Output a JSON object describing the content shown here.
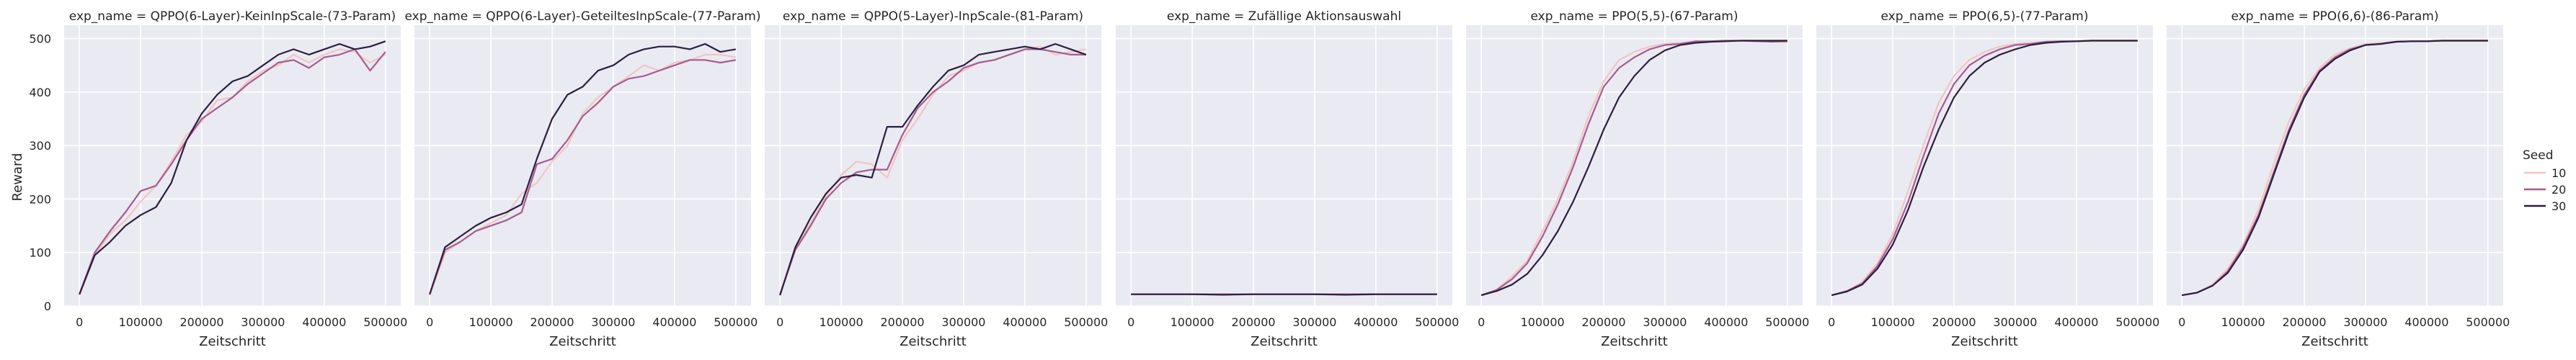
{
  "chart_data": {
    "type": "line",
    "ylabel": "Reward",
    "xlabel": "Zeitschritt",
    "xlim": [
      -25000,
      525000
    ],
    "ylim": [
      0,
      525
    ],
    "xticks": [
      0,
      100000,
      200000,
      300000,
      400000,
      500000
    ],
    "yticks": [
      0,
      100,
      200,
      300,
      400,
      500
    ],
    "grid": true,
    "legend": {
      "title": "Seed",
      "placement": "right",
      "entries": [
        {
          "label": "10",
          "color": "#f0c6c2"
        },
        {
          "label": "20",
          "color": "#a55c8e"
        },
        {
          "label": "30",
          "color": "#2d1e3e"
        }
      ]
    },
    "panels": [
      {
        "title": "exp_name = QPPO(6-Layer)-KeinInpScale-(73-Param)",
        "x": [
          0,
          25000,
          50000,
          75000,
          100000,
          125000,
          150000,
          175000,
          200000,
          225000,
          250000,
          275000,
          300000,
          325000,
          350000,
          375000,
          400000,
          425000,
          450000,
          475000,
          500000
        ],
        "series": [
          {
            "name": "10",
            "values": [
              20,
              95,
              135,
              160,
              195,
              225,
              270,
              320,
              345,
              385,
              390,
              420,
              440,
              450,
              470,
              455,
              470,
              480,
              475,
              455,
              470
            ]
          },
          {
            "name": "20",
            "values": [
              22,
              100,
              140,
              175,
              215,
              225,
              265,
              310,
              350,
              370,
              390,
              415,
              435,
              455,
              460,
              445,
              465,
              470,
              480,
              440,
              475
            ]
          },
          {
            "name": "30",
            "values": [
              22,
              95,
              120,
              150,
              170,
              185,
              230,
              310,
              360,
              395,
              420,
              430,
              450,
              470,
              480,
              470,
              480,
              490,
              480,
              485,
              495
            ]
          }
        ]
      },
      {
        "title": "exp_name = QPPO(6-Layer)-GeteiltesInpScale-(77-Param)",
        "x": [
          0,
          25000,
          50000,
          75000,
          100000,
          125000,
          150000,
          175000,
          200000,
          225000,
          250000,
          275000,
          300000,
          325000,
          350000,
          375000,
          400000,
          425000,
          450000,
          475000,
          500000
        ],
        "series": [
          {
            "name": "10",
            "values": [
              20,
              100,
              120,
              140,
              155,
              170,
              210,
              230,
              270,
              300,
              360,
              390,
              410,
              430,
              450,
              440,
              455,
              460,
              470,
              470,
              465
            ]
          },
          {
            "name": "20",
            "values": [
              22,
              105,
              120,
              140,
              150,
              160,
              175,
              265,
              275,
              310,
              355,
              380,
              410,
              425,
              430,
              440,
              450,
              460,
              460,
              455,
              460
            ]
          },
          {
            "name": "30",
            "values": [
              22,
              110,
              130,
              150,
              165,
              175,
              190,
              275,
              350,
              395,
              410,
              440,
              450,
              470,
              480,
              485,
              485,
              480,
              490,
              475,
              480
            ]
          }
        ]
      },
      {
        "title": "exp_name = QPPO(5-Layer)-InpScale-(81-Param)",
        "x": [
          0,
          25000,
          50000,
          75000,
          100000,
          125000,
          150000,
          175000,
          200000,
          225000,
          250000,
          275000,
          300000,
          325000,
          350000,
          375000,
          400000,
          425000,
          450000,
          475000,
          500000
        ],
        "series": [
          {
            "name": "10",
            "values": [
              20,
              110,
              155,
              205,
              245,
              270,
              265,
              240,
              310,
              350,
              395,
              430,
              440,
              455,
              460,
              470,
              480,
              485,
              470,
              475,
              480
            ]
          },
          {
            "name": "20",
            "values": [
              22,
              105,
              150,
              200,
              230,
              250,
              255,
              255,
              320,
              370,
              400,
              420,
              445,
              455,
              460,
              470,
              480,
              480,
              475,
              470,
              470
            ]
          },
          {
            "name": "30",
            "values": [
              20,
              110,
              165,
              210,
              240,
              245,
              240,
              335,
              335,
              375,
              410,
              440,
              450,
              470,
              475,
              480,
              485,
              480,
              490,
              480,
              470
            ]
          }
        ]
      },
      {
        "title": "exp_name = Zufällige Aktionsauswahl",
        "x": [
          0,
          50000,
          100000,
          150000,
          200000,
          250000,
          300000,
          350000,
          400000,
          450000,
          500000
        ],
        "series": [
          {
            "name": "10",
            "values": [
              22,
              22,
              22,
              22,
              22,
              22,
              22,
              22,
              22,
              22,
              22
            ]
          },
          {
            "name": "20",
            "values": [
              22,
              22,
              22,
              22,
              22,
              22,
              22,
              22,
              22,
              22,
              22
            ]
          },
          {
            "name": "30",
            "values": [
              22,
              22,
              22,
              21,
              22,
              22,
              22,
              21,
              22,
              22,
              22
            ]
          }
        ]
      },
      {
        "title": "exp_name = PPO(5,5)-(67-Param)",
        "x": [
          0,
          25000,
          50000,
          75000,
          100000,
          125000,
          150000,
          175000,
          200000,
          225000,
          250000,
          275000,
          300000,
          325000,
          350000,
          375000,
          400000,
          425000,
          450000,
          475000,
          500000
        ],
        "series": [
          {
            "name": "10",
            "values": [
              20,
              30,
              55,
              85,
              140,
              200,
              270,
              355,
              420,
              460,
              475,
              485,
              490,
              492,
              494,
              495,
              495,
              496,
              496,
              495,
              493
            ]
          },
          {
            "name": "20",
            "values": [
              20,
              30,
              50,
              80,
              130,
              190,
              260,
              340,
              410,
              445,
              465,
              480,
              488,
              490,
              495,
              495,
              496,
              496,
              495,
              494,
              495
            ]
          },
          {
            "name": "30",
            "values": [
              20,
              28,
              40,
              60,
              95,
              140,
              195,
              260,
              330,
              390,
              430,
              460,
              478,
              488,
              492,
              494,
              495,
              496,
              496,
              496,
              496
            ]
          }
        ]
      },
      {
        "title": "exp_name = PPO(6,5)-(77-Param)",
        "x": [
          0,
          25000,
          50000,
          75000,
          100000,
          125000,
          150000,
          175000,
          200000,
          225000,
          250000,
          275000,
          300000,
          325000,
          350000,
          375000,
          400000,
          425000,
          450000,
          475000,
          500000
        ],
        "series": [
          {
            "name": "10",
            "values": [
              20,
              28,
              45,
              80,
              135,
              215,
              300,
              380,
              430,
              460,
              475,
              485,
              490,
              492,
              494,
              495,
              495,
              496,
              496,
              496,
              496
            ]
          },
          {
            "name": "20",
            "values": [
              20,
              28,
              42,
              75,
              125,
              195,
              280,
              360,
              415,
              450,
              468,
              480,
              488,
              490,
              494,
              495,
              495,
              496,
              496,
              496,
              496
            ]
          },
          {
            "name": "30",
            "values": [
              20,
              27,
              40,
              70,
              115,
              180,
              260,
              330,
              390,
              430,
              455,
              470,
              480,
              488,
              492,
              494,
              495,
              496,
              496,
              496,
              496
            ]
          }
        ]
      },
      {
        "title": "exp_name = PPO(6,6)-(86-Param)",
        "x": [
          0,
          25000,
          50000,
          75000,
          100000,
          125000,
          150000,
          175000,
          200000,
          225000,
          250000,
          275000,
          300000,
          325000,
          350000,
          375000,
          400000,
          425000,
          450000,
          475000,
          500000
        ],
        "series": [
          {
            "name": "10",
            "values": [
              20,
              25,
              40,
              70,
              115,
              180,
              265,
              345,
              405,
              445,
              470,
              482,
              490,
              492,
              494,
              495,
              495,
              496,
              496,
              496,
              496
            ]
          },
          {
            "name": "20",
            "values": [
              20,
              25,
              38,
              65,
              110,
              170,
              250,
              330,
              395,
              440,
              465,
              480,
              488,
              490,
              494,
              495,
              495,
              496,
              496,
              496,
              496
            ]
          },
          {
            "name": "30",
            "values": [
              20,
              25,
              38,
              62,
              105,
              165,
              245,
              325,
              390,
              438,
              462,
              478,
              488,
              490,
              494,
              495,
              495,
              496,
              496,
              496,
              496
            ]
          }
        ]
      }
    ]
  }
}
